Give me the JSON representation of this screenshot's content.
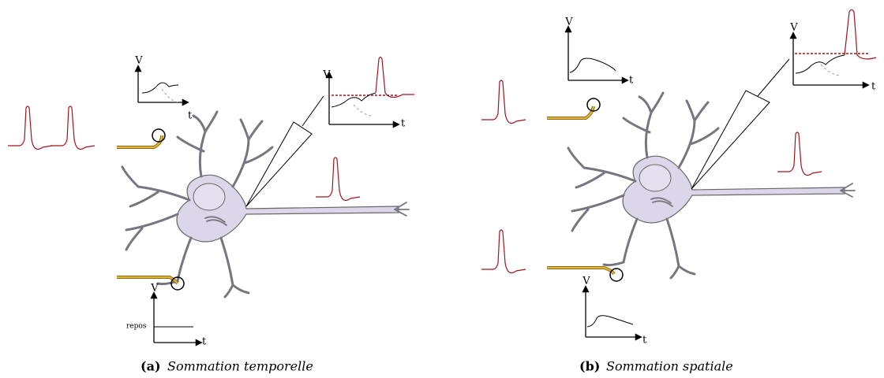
{
  "panels": [
    {
      "label": "(a)",
      "caption": "Sommation temporelle",
      "plots": [
        {
          "y_label": "V",
          "x_label": "t"
        },
        {
          "y_label": "V",
          "x_label": "t"
        },
        {
          "y_label": "V",
          "x_label": "t",
          "baseline_label": "repos"
        }
      ]
    },
    {
      "label": "(b)",
      "caption": "Sommation spatiale",
      "plots": [
        {
          "y_label": "V",
          "x_label": "t"
        },
        {
          "y_label": "V",
          "x_label": "t"
        },
        {
          "y_label": "V",
          "x_label": "t"
        }
      ]
    }
  ]
}
